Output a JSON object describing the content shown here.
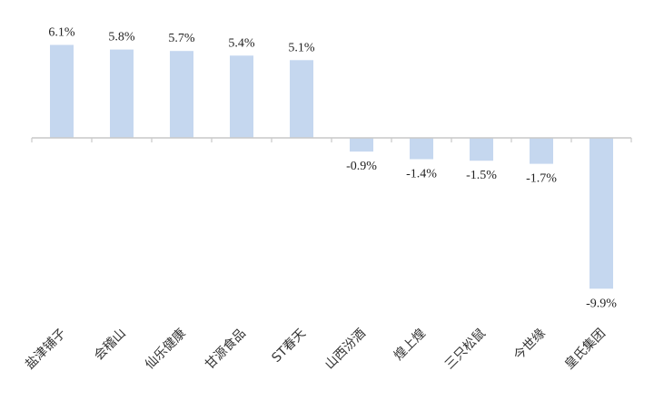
{
  "chart_data": {
    "type": "bar",
    "categories": [
      "盐津铺子",
      "会稽山",
      "仙乐健康",
      "甘源食品",
      "ST春天",
      "山西汾酒",
      "煌上煌",
      "三只松鼠",
      "今世缘",
      "皇氏集团"
    ],
    "values": [
      6.1,
      5.8,
      5.7,
      5.4,
      5.1,
      -0.9,
      -1.4,
      -1.5,
      -1.7,
      -9.9
    ],
    "value_labels": [
      "6.1%",
      "5.8%",
      "5.7%",
      "5.4%",
      "5.1%",
      "-0.9%",
      "-1.4%",
      "-1.5%",
      "-1.7%",
      "-9.9%"
    ],
    "unit": "%",
    "title": "",
    "xlabel": "",
    "ylabel": "",
    "ylim": [
      -10,
      6.2
    ],
    "grid": false,
    "legend": "none",
    "bar_color": "#c5d7ef",
    "axis_color": "#c9c9c9"
  }
}
